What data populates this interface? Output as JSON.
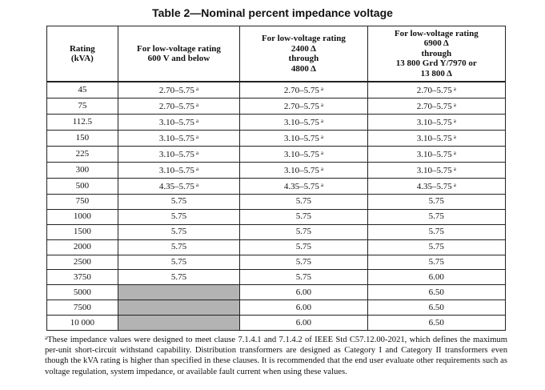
{
  "title": "Table 2—Nominal percent impedance voltage",
  "headers": [
    [
      "Rating",
      "(kVA)"
    ],
    [
      "For low-voltage rating",
      "600 V and below"
    ],
    [
      "For low-voltage rating",
      "2400 Δ",
      "through",
      "4800 Δ"
    ],
    [
      "For low-voltage rating",
      "6900 Δ",
      "through",
      "13 800 Grd Y/7970 or",
      "13 800 Δ"
    ]
  ],
  "footnote_marker": "a",
  "rows": [
    {
      "rating": "45",
      "c1": "2.70–5.75",
      "c1_note": true,
      "c2": "2.70–5.75",
      "c2_note": true,
      "c3": "2.70–5.75",
      "c3_note": true
    },
    {
      "rating": "75",
      "c1": "2.70–5.75",
      "c1_note": true,
      "c2": "2.70–5.75",
      "c2_note": true,
      "c3": "2.70–5.75",
      "c3_note": true
    },
    {
      "rating": "112.5",
      "c1": "3.10–5.75",
      "c1_note": true,
      "c2": "3.10–5.75",
      "c2_note": true,
      "c3": "3.10–5.75",
      "c3_note": true
    },
    {
      "rating": "150",
      "c1": "3.10–5.75",
      "c1_note": true,
      "c2": "3.10–5.75",
      "c2_note": true,
      "c3": "3.10–5.75",
      "c3_note": true
    },
    {
      "rating": "225",
      "c1": "3.10–5.75",
      "c1_note": true,
      "c2": "3.10–5.75",
      "c2_note": true,
      "c3": "3.10–5.75",
      "c3_note": true
    },
    {
      "rating": "300",
      "c1": "3.10–5.75",
      "c1_note": true,
      "c2": "3.10–5.75",
      "c2_note": true,
      "c3": "3.10–5.75",
      "c3_note": true
    },
    {
      "rating": "500",
      "c1": "4.35–5.75",
      "c1_note": true,
      "c2": "4.35–5.75",
      "c2_note": true,
      "c3": "4.35–5.75",
      "c3_note": true
    },
    {
      "rating": "750",
      "c1": "5.75",
      "c2": "5.75",
      "c3": "5.75"
    },
    {
      "rating": "1000",
      "c1": "5.75",
      "c2": "5.75",
      "c3": "5.75"
    },
    {
      "rating": "1500",
      "c1": "5.75",
      "c2": "5.75",
      "c3": "5.75"
    },
    {
      "rating": "2000",
      "c1": "5.75",
      "c2": "5.75",
      "c3": "5.75"
    },
    {
      "rating": "2500",
      "c1": "5.75",
      "c2": "5.75",
      "c3": "5.75"
    },
    {
      "rating": "3750",
      "c1": "5.75",
      "c2": "5.75",
      "c3": "6.00"
    },
    {
      "rating": "5000",
      "c1": null,
      "c2": "6.00",
      "c3": "6.50"
    },
    {
      "rating": "7500",
      "c1": null,
      "c2": "6.00",
      "c3": "6.50"
    },
    {
      "rating": "10 000",
      "c1": null,
      "c2": "6.00",
      "c3": "6.50"
    }
  ],
  "shaded_color": "#b3b3b3",
  "note": {
    "marker": "a",
    "text": "These impedance values were designed to meet clause 7.1.4.1 and 7.1.4.2 of IEEE Std C57.12.00-2021, which defines the maximum per-unit short-circuit withstand capability. Distribution transformers are designed as Category I and Category II transformers even though the kVA rating is higher than specified in these clauses. It is recommended that the end user evaluate other requirements such as voltage regulation, system impedance, or available fault current when using these values."
  }
}
